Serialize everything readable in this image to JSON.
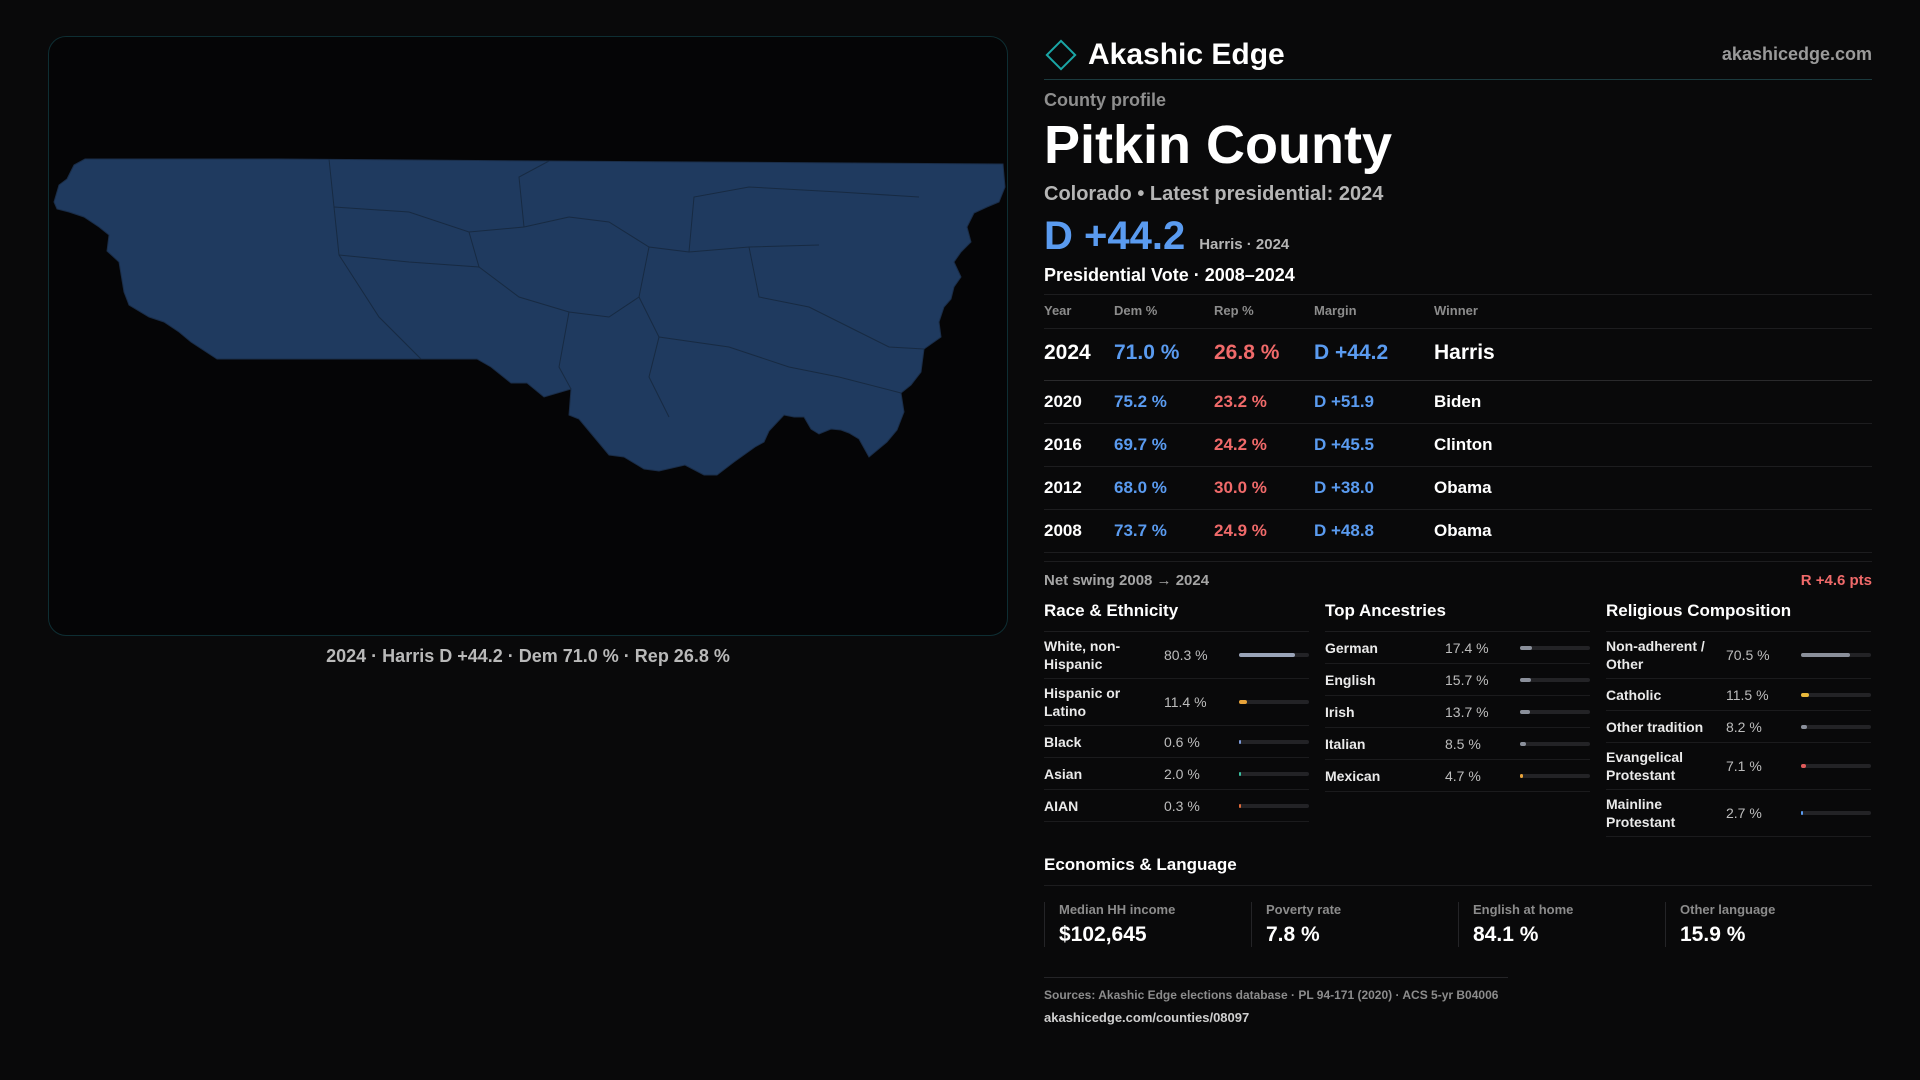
{
  "map": {
    "caption": "2024 · Harris D +44.2 · Dem 71.0 % · Rep 26.8 %",
    "fill_color": "#1f3a5f",
    "border_color": "#18e0e0"
  },
  "brand": {
    "name": "Akashic Edge",
    "url": "akashicedge.com"
  },
  "profile": {
    "eyebrow": "County profile",
    "county": "Pitkin County",
    "state_line": "Colorado • Latest presidential: 2024",
    "margin": "D +44.2",
    "margin_note": "Harris · 2024"
  },
  "presidential": {
    "title": "Presidential Vote · 2008–2024",
    "headers": {
      "year": "Year",
      "dem": "Dem %",
      "rep": "Rep %",
      "margin": "Margin",
      "winner": "Winner"
    },
    "rows": [
      {
        "year": "2024",
        "dem": "71.0 %",
        "rep": "26.8 %",
        "margin": "D +44.2",
        "winner": "Harris"
      },
      {
        "year": "2020",
        "dem": "75.2 %",
        "rep": "23.2 %",
        "margin": "D +51.9",
        "winner": "Biden"
      },
      {
        "year": "2016",
        "dem": "69.7 %",
        "rep": "24.2 %",
        "margin": "D +45.5",
        "winner": "Clinton"
      },
      {
        "year": "2012",
        "dem": "68.0 %",
        "rep": "30.0 %",
        "margin": "D +38.0",
        "winner": "Obama"
      },
      {
        "year": "2008",
        "dem": "73.7 %",
        "rep": "24.9 %",
        "margin": "D +48.8",
        "winner": "Obama"
      }
    ],
    "swing_label": "Net swing 2008 → 2024",
    "swing_value": "R +4.6 pts"
  },
  "race": {
    "title": "Race & Ethnicity",
    "items": [
      {
        "label": "White, non-Hispanic",
        "value": "80.3 %",
        "share": 0.803,
        "color": "#9aa4b8"
      },
      {
        "label": "Hispanic or Latino",
        "value": "11.4 %",
        "share": 0.114,
        "color": "#e8a33a"
      },
      {
        "label": "Black",
        "value": "0.6 %",
        "share": 0.006,
        "color": "#7d9ad8"
      },
      {
        "label": "Asian",
        "value": "2.0 %",
        "share": 0.02,
        "color": "#3ac0a0"
      },
      {
        "label": "AIAN",
        "value": "0.3 %",
        "share": 0.003,
        "color": "#e06a3a"
      }
    ]
  },
  "ancestry": {
    "title": "Top Ancestries",
    "items": [
      {
        "label": "German",
        "value": "17.4 %",
        "share": 0.174,
        "color": "#8a8f9a"
      },
      {
        "label": "English",
        "value": "15.7 %",
        "share": 0.157,
        "color": "#8a8f9a"
      },
      {
        "label": "Irish",
        "value": "13.7 %",
        "share": 0.137,
        "color": "#8a8f9a"
      },
      {
        "label": "Italian",
        "value": "8.5 %",
        "share": 0.085,
        "color": "#8a8f9a"
      },
      {
        "label": "Mexican",
        "value": "4.7 %",
        "share": 0.047,
        "color": "#e8a33a"
      }
    ]
  },
  "religion": {
    "title": "Religious Composition",
    "items": [
      {
        "label": "Non-adherent / Other",
        "value": "70.5 %",
        "share": 0.705,
        "color": "#8a8f9a"
      },
      {
        "label": "Catholic",
        "value": "11.5 %",
        "share": 0.115,
        "color": "#e8b83a"
      },
      {
        "label": "Other tradition",
        "value": "8.2 %",
        "share": 0.082,
        "color": "#8a8f9a"
      },
      {
        "label": "Evangelical Protestant",
        "value": "7.1 %",
        "share": 0.071,
        "color": "#e05a5a"
      },
      {
        "label": "Mainline Protestant",
        "value": "2.7 %",
        "share": 0.027,
        "color": "#5a9bf0"
      }
    ]
  },
  "economics": {
    "title": "Economics & Language",
    "items": [
      {
        "label": "Median HH income",
        "value": "$102,645"
      },
      {
        "label": "Poverty rate",
        "value": "7.8 %"
      },
      {
        "label": "English at home",
        "value": "84.1 %"
      },
      {
        "label": "Other language",
        "value": "15.9 %"
      }
    ]
  },
  "footer": {
    "sources": "Sources: Akashic Edge elections database · PL 94-171 (2020) · ACS 5-yr B04006",
    "url": "akashicedge.com/counties/08097"
  }
}
